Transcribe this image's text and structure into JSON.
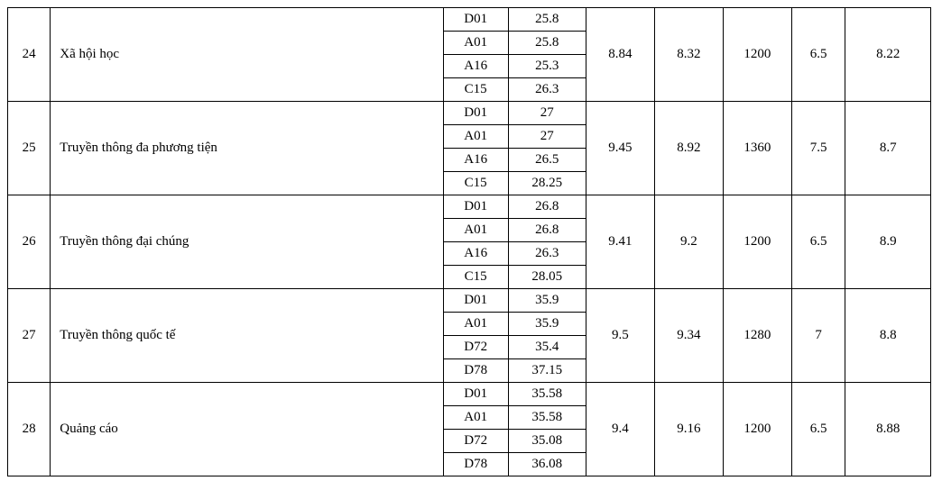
{
  "rows": [
    {
      "index": "24",
      "name": "Xã hội học",
      "combos": [
        [
          "D01",
          "25.8"
        ],
        [
          "A01",
          "25.8"
        ],
        [
          "A16",
          "25.3"
        ],
        [
          "C15",
          "26.3"
        ]
      ],
      "v1": "8.84",
      "v2": "8.32",
      "v3": "1200",
      "v4": "6.5",
      "v5": "8.22"
    },
    {
      "index": "25",
      "name": "Truyền thông đa phương tiện",
      "combos": [
        [
          "D01",
          "27"
        ],
        [
          "A01",
          "27"
        ],
        [
          "A16",
          "26.5"
        ],
        [
          "C15",
          "28.25"
        ]
      ],
      "v1": "9.45",
      "v2": "8.92",
      "v3": "1360",
      "v4": "7.5",
      "v5": "8.7"
    },
    {
      "index": "26",
      "name": "Truyền thông đại chúng",
      "combos": [
        [
          "D01",
          "26.8"
        ],
        [
          "A01",
          "26.8"
        ],
        [
          "A16",
          "26.3"
        ],
        [
          "C15",
          "28.05"
        ]
      ],
      "v1": "9.41",
      "v2": "9.2",
      "v3": "1200",
      "v4": "6.5",
      "v5": "8.9"
    },
    {
      "index": "27",
      "name": "Truyền thông quốc tế",
      "combos": [
        [
          "D01",
          "35.9"
        ],
        [
          "A01",
          "35.9"
        ],
        [
          "D72",
          "35.4"
        ],
        [
          "D78",
          "37.15"
        ]
      ],
      "v1": "9.5",
      "v2": "9.34",
      "v3": "1280",
      "v4": "7",
      "v5": "8.8"
    },
    {
      "index": "28",
      "name": "Quảng cáo",
      "combos": [
        [
          "D01",
          "35.58"
        ],
        [
          "A01",
          "35.58"
        ],
        [
          "D72",
          "35.08"
        ],
        [
          "D78",
          "36.08"
        ]
      ],
      "v1": "9.4",
      "v2": "9.16",
      "v3": "1200",
      "v4": "6.5",
      "v5": "8.88"
    }
  ]
}
